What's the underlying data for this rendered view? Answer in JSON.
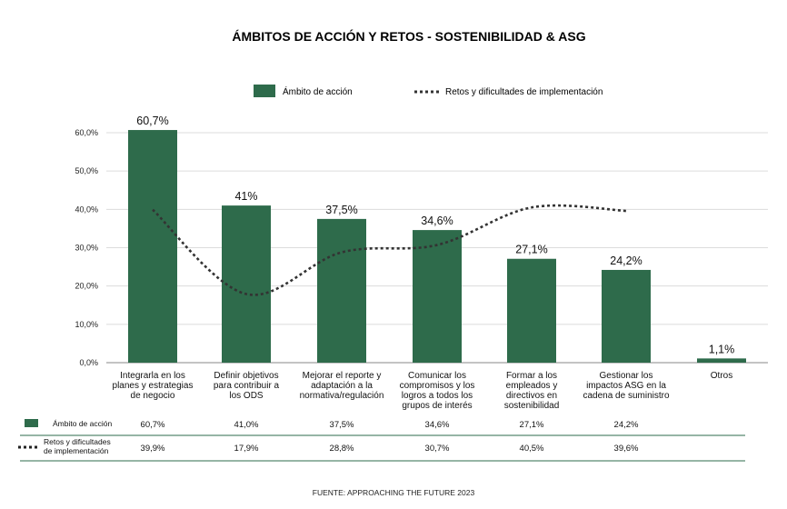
{
  "chart_data": {
    "type": "bar",
    "title": "ÁMBITOS DE ACCIÓN Y RETOS - SOSTENIBILIDAD & ASG",
    "categories": [
      [
        "Integrarla en los",
        "planes y estrategias",
        "de negocio"
      ],
      [
        "Definir objetivos",
        "para contribuir a",
        "los ODS"
      ],
      [
        "Mejorar el reporte y",
        "adaptación a la",
        "normativa/regulación"
      ],
      [
        "Comunicar los",
        "compromisos y los",
        "logros a todos los",
        "grupos de interés"
      ],
      [
        "Formar a los",
        "empleados y",
        "directivos en",
        "sostenibilidad"
      ],
      [
        "Gestionar los",
        "impactos ASG en la",
        "cadena de suministro"
      ],
      [
        "Otros"
      ]
    ],
    "series": [
      {
        "name": "Ámbito de acción",
        "type": "bar",
        "color": "#2e6b4b",
        "values": [
          60.7,
          41.0,
          37.5,
          34.6,
          27.1,
          24.2,
          1.1
        ],
        "data_labels": [
          "60,7%",
          "41%",
          "37,5%",
          "34,6%",
          "27,1%",
          "24,2%",
          "1,1%"
        ],
        "table_values": [
          "60,7%",
          "41,0%",
          "37,5%",
          "34,6%",
          "27,1%",
          "24,2%",
          ""
        ]
      },
      {
        "name": "Retos y dificultades de implementación",
        "type": "line",
        "style": "dotted",
        "color": "#333333",
        "values": [
          39.9,
          17.9,
          28.8,
          30.7,
          40.5,
          39.6,
          null
        ],
        "table_values": [
          "39,9%",
          "17,9%",
          "28,8%",
          "30,7%",
          "40,5%",
          "39,6%",
          ""
        ]
      }
    ],
    "ylim": [
      0,
      60
    ],
    "yticks": [
      "0,0%",
      "10,0%",
      "20,0%",
      "30,0%",
      "40,0%",
      "50,0%",
      "60,0%"
    ],
    "grid": true,
    "legend_position": "top-center",
    "table_labels": {
      "bar": "Ámbito de acción",
      "line": [
        "Retos y dificultades",
        "de implementación"
      ]
    },
    "source": "FUENTE: APPROACHING THE FUTURE 2023"
  }
}
